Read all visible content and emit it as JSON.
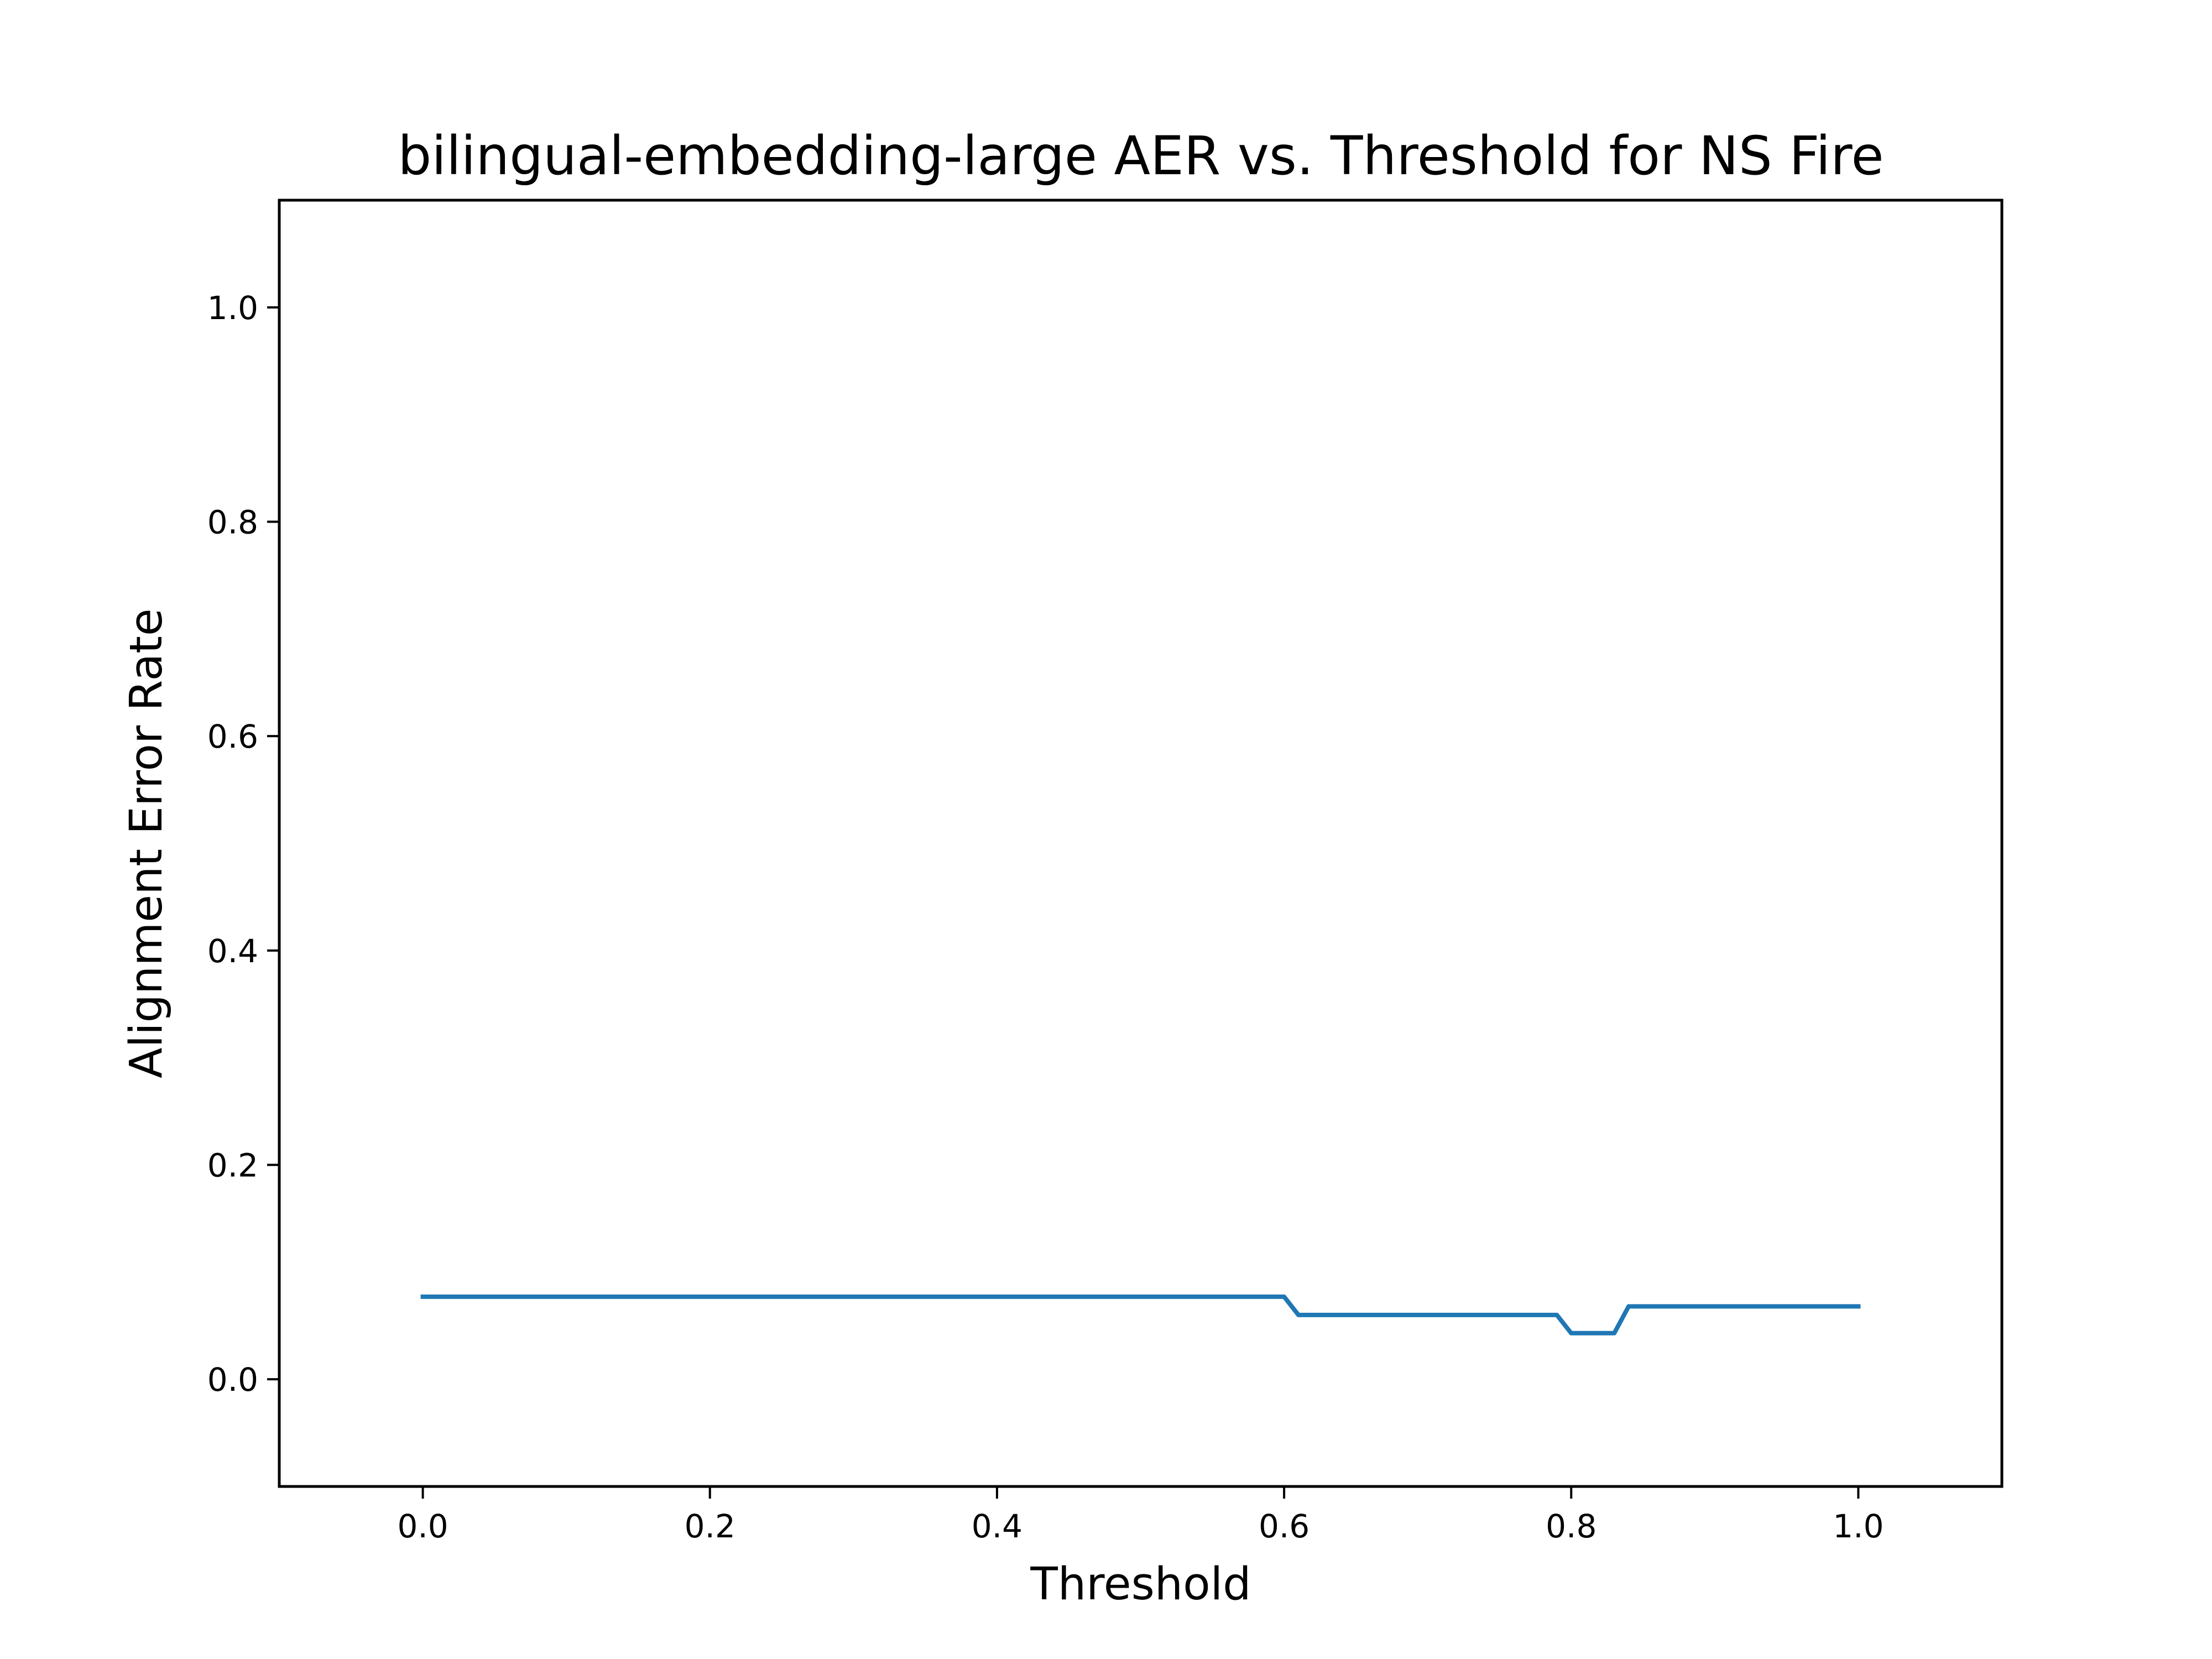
{
  "chart_data": {
    "type": "line",
    "title": "bilingual-embedding-large AER vs. Threshold for NS Fire",
    "xlabel": "Threshold",
    "ylabel": "Alignment Error Rate",
    "xlim": [
      -0.1,
      1.1
    ],
    "ylim": [
      -0.1,
      1.1
    ],
    "xticks": [
      0.0,
      0.2,
      0.4,
      0.6,
      0.8,
      1.0
    ],
    "xtick_labels": [
      "0.0",
      "0.2",
      "0.4",
      "0.6",
      "0.8",
      "1.0"
    ],
    "yticks": [
      0.0,
      0.2,
      0.4,
      0.6,
      0.8,
      1.0
    ],
    "ytick_labels": [
      "0.0",
      "0.2",
      "0.4",
      "0.6",
      "0.8",
      "1.0"
    ],
    "grid": false,
    "series": [
      {
        "color": "#1f77b4",
        "x": [
          0.0,
          0.6,
          0.61,
          0.79,
          0.8,
          0.83,
          0.84,
          1.0
        ],
        "y": [
          0.077,
          0.077,
          0.06,
          0.06,
          0.043,
          0.043,
          0.068,
          0.068
        ]
      }
    ]
  }
}
